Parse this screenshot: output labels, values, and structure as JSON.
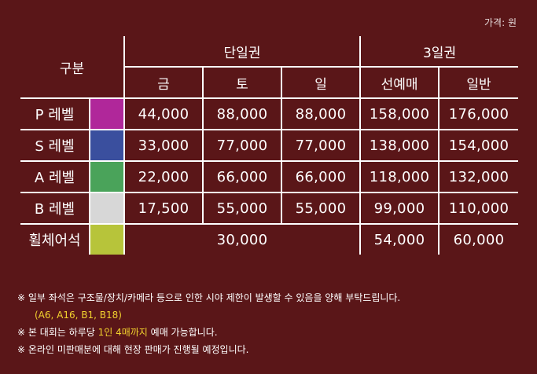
{
  "unit_label": "가격: 원",
  "header": {
    "category": "구분",
    "single_day": "단일권",
    "three_day": "3일권",
    "fri": "금",
    "sat": "토",
    "sun": "일",
    "presale": "선예매",
    "general": "일반"
  },
  "rows": [
    {
      "label": "P 레벨",
      "color": "#b0279a",
      "fri": "44,000",
      "sat": "88,000",
      "sun": "88,000",
      "presale": "158,000",
      "general": "176,000"
    },
    {
      "label": "S 레벨",
      "color": "#3a4f9e",
      "fri": "33,000",
      "sat": "77,000",
      "sun": "77,000",
      "presale": "138,000",
      "general": "154,000"
    },
    {
      "label": "A 레벨",
      "color": "#4aa35a",
      "fri": "22,000",
      "sat": "66,000",
      "sun": "66,000",
      "presale": "118,000",
      "general": "132,000"
    },
    {
      "label": "B 레벨",
      "color": "#d7d7d7",
      "fri": "17,500",
      "sat": "55,000",
      "sun": "55,000",
      "presale": "99,000",
      "general": "110,000"
    }
  ],
  "wheelchair": {
    "label": "휠체어석",
    "color": "#b7c43a",
    "single": "30,000",
    "presale": "54,000",
    "general": "60,000"
  },
  "notes": {
    "line1": "※ 일부 좌석은 구조물/장치/카메라 등으로 인한 시야 제한이 발생할 수 있음을 양해 부탁드립니다.",
    "line1_sub": "(A6, A16, B1, B18)",
    "line2_pre": "※ 본 대회는 하루당 ",
    "line2_hl": "1인 4매까지",
    "line2_post": " 예매 가능합니다.",
    "line3": "※ 온라인 미판매분에 대해 현장 판매가 진행될 예정입니다."
  }
}
